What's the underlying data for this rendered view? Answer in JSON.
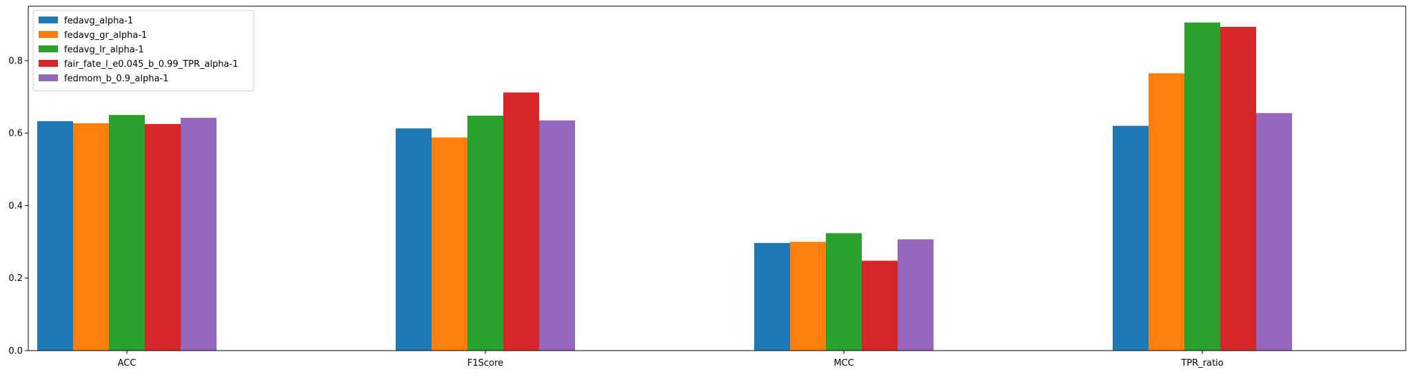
{
  "chart_data": {
    "type": "bar",
    "categories": [
      "ACC",
      "F1Score",
      "MCC",
      "TPR_ratio"
    ],
    "series": [
      {
        "name": "fedavg_alpha-1",
        "color": "#1f77b4",
        "values": [
          0.633,
          0.613,
          0.297,
          0.62
        ]
      },
      {
        "name": "fedavg_gr_alpha-1",
        "color": "#ff7f0e",
        "values": [
          0.627,
          0.588,
          0.3,
          0.765
        ]
      },
      {
        "name": "fedavg_lr_alpha-1",
        "color": "#2ca02c",
        "values": [
          0.65,
          0.648,
          0.324,
          0.905
        ]
      },
      {
        "name": "fair_fate_l_e0.045_b_0.99_TPR_alpha-1",
        "color": "#d62728",
        "values": [
          0.625,
          0.712,
          0.248,
          0.893
        ]
      },
      {
        "name": "fedmom_b_0.9_alpha-1",
        "color": "#9467bd",
        "values": [
          0.642,
          0.635,
          0.307,
          0.655
        ]
      }
    ],
    "ylim": [
      0,
      0.95
    ],
    "yticks": [
      0.0,
      0.2,
      0.4,
      0.6,
      0.8
    ],
    "ytick_labels": [
      "0.0",
      "0.2",
      "0.4",
      "0.6",
      "0.8"
    ],
    "title": "",
    "xlabel": "",
    "ylabel": "",
    "legend_position": "top-left",
    "grid": false
  }
}
